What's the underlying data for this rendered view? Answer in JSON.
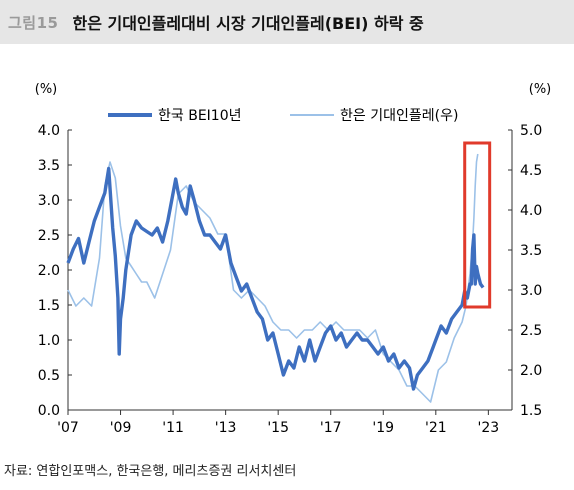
{
  "header": {
    "figure_number": "그림15",
    "title": "한은 기대인플레대비 시장 기대인플레(BEI) 하락 중"
  },
  "source": "자료: 연합인포맥스, 한국은행, 메리츠증권 리서치센터",
  "chart_data": {
    "type": "line",
    "title": "",
    "left_unit": "(%)",
    "right_unit": "(%)",
    "x_tick_labels": [
      "'07",
      "'09",
      "'11",
      "'13",
      "'15",
      "'17",
      "'19",
      "'21",
      "'23"
    ],
    "x_ticks": [
      2007,
      2009,
      2011,
      2013,
      2015,
      2017,
      2019,
      2021,
      2023
    ],
    "xlim": [
      2007,
      2023.9
    ],
    "ylim_left": [
      0.0,
      4.0
    ],
    "ylim_right": [
      1.5,
      5.0
    ],
    "y_ticks_left": [
      "0.0",
      "0.5",
      "1.0",
      "1.5",
      "2.0",
      "2.5",
      "3.0",
      "3.5",
      "4.0"
    ],
    "y_ticks_right": [
      "1.5",
      "2.0",
      "2.5",
      "3.0",
      "3.5",
      "4.0",
      "4.5",
      "5.0"
    ],
    "grid": false,
    "legend_position": "top",
    "highlight_box_color": "#e03a2b",
    "series": [
      {
        "name": "한국 BEI10년",
        "axis": "left",
        "color": "#3e6fc0",
        "x": [
          2007.0,
          2007.2,
          2007.4,
          2007.6,
          2007.8,
          2008.0,
          2008.2,
          2008.4,
          2008.55,
          2008.7,
          2008.8,
          2008.9,
          2008.95,
          2009.0,
          2009.1,
          2009.2,
          2009.4,
          2009.6,
          2009.8,
          2010.0,
          2010.2,
          2010.4,
          2010.6,
          2010.8,
          2011.0,
          2011.1,
          2011.2,
          2011.35,
          2011.5,
          2011.65,
          2011.8,
          2012.0,
          2012.2,
          2012.4,
          2012.6,
          2012.8,
          2013.0,
          2013.2,
          2013.4,
          2013.6,
          2013.8,
          2014.0,
          2014.2,
          2014.4,
          2014.6,
          2014.8,
          2015.0,
          2015.2,
          2015.4,
          2015.6,
          2015.8,
          2016.0,
          2016.2,
          2016.4,
          2016.6,
          2016.8,
          2017.0,
          2017.2,
          2017.4,
          2017.6,
          2017.8,
          2018.0,
          2018.2,
          2018.4,
          2018.6,
          2018.8,
          2019.0,
          2019.2,
          2019.4,
          2019.6,
          2019.8,
          2020.0,
          2020.15,
          2020.3,
          2020.5,
          2020.7,
          2020.9,
          2021.0,
          2021.2,
          2021.4,
          2021.6,
          2021.8,
          2022.0,
          2022.1,
          2022.2,
          2022.3,
          2022.35,
          2022.4,
          2022.45,
          2022.5,
          2022.55,
          2022.6,
          2022.7,
          2022.8
        ],
        "values": [
          2.1,
          2.3,
          2.45,
          2.1,
          2.4,
          2.7,
          2.9,
          3.1,
          3.45,
          2.6,
          2.2,
          1.6,
          0.8,
          1.3,
          1.6,
          2.0,
          2.5,
          2.7,
          2.6,
          2.55,
          2.5,
          2.6,
          2.4,
          2.7,
          3.1,
          3.3,
          3.1,
          2.9,
          2.8,
          3.2,
          3.0,
          2.7,
          2.5,
          2.5,
          2.4,
          2.3,
          2.5,
          2.1,
          1.9,
          1.7,
          1.8,
          1.6,
          1.4,
          1.3,
          1.0,
          1.1,
          0.8,
          0.5,
          0.7,
          0.6,
          0.9,
          0.7,
          1.0,
          0.7,
          0.9,
          1.1,
          1.2,
          1.0,
          1.1,
          0.9,
          1.0,
          1.1,
          1.0,
          1.0,
          0.9,
          0.8,
          0.9,
          0.7,
          0.8,
          0.6,
          0.7,
          0.6,
          0.3,
          0.5,
          0.6,
          0.7,
          0.9,
          1.0,
          1.2,
          1.1,
          1.3,
          1.4,
          1.5,
          1.7,
          1.6,
          1.8,
          1.8,
          2.3,
          2.5,
          1.8,
          2.05,
          1.95,
          1.8,
          1.75
        ]
      },
      {
        "name": "한은 기대인플레(우)",
        "axis": "right",
        "color": "#9cc1e8",
        "x": [
          2007.0,
          2007.3,
          2007.6,
          2007.9,
          2008.2,
          2008.4,
          2008.6,
          2008.8,
          2009.0,
          2009.2,
          2009.4,
          2009.6,
          2009.8,
          2010.0,
          2010.3,
          2010.6,
          2010.9,
          2011.2,
          2011.5,
          2011.8,
          2012.1,
          2012.4,
          2012.7,
          2013.0,
          2013.3,
          2013.6,
          2013.9,
          2014.2,
          2014.5,
          2014.8,
          2015.1,
          2015.4,
          2015.7,
          2016.0,
          2016.3,
          2016.6,
          2016.9,
          2017.2,
          2017.5,
          2017.8,
          2018.1,
          2018.4,
          2018.7,
          2019.0,
          2019.3,
          2019.6,
          2019.9,
          2020.2,
          2020.5,
          2020.8,
          2021.1,
          2021.4,
          2021.7,
          2022.0,
          2022.15,
          2022.3,
          2022.4,
          2022.45,
          2022.5,
          2022.55,
          2022.6
        ],
        "values": [
          3.0,
          2.8,
          2.9,
          2.8,
          3.4,
          4.3,
          4.6,
          4.4,
          3.8,
          3.4,
          3.3,
          3.2,
          3.1,
          3.1,
          2.9,
          3.2,
          3.5,
          4.2,
          4.3,
          4.1,
          4.0,
          3.9,
          3.7,
          3.7,
          3.0,
          2.9,
          3.0,
          2.9,
          2.8,
          2.6,
          2.5,
          2.5,
          2.4,
          2.5,
          2.5,
          2.6,
          2.5,
          2.6,
          2.5,
          2.5,
          2.5,
          2.4,
          2.5,
          2.2,
          2.1,
          2.0,
          1.8,
          1.8,
          1.7,
          1.6,
          2.0,
          2.1,
          2.4,
          2.6,
          2.8,
          3.2,
          3.6,
          3.9,
          4.3,
          4.6,
          4.7
        ]
      }
    ]
  }
}
